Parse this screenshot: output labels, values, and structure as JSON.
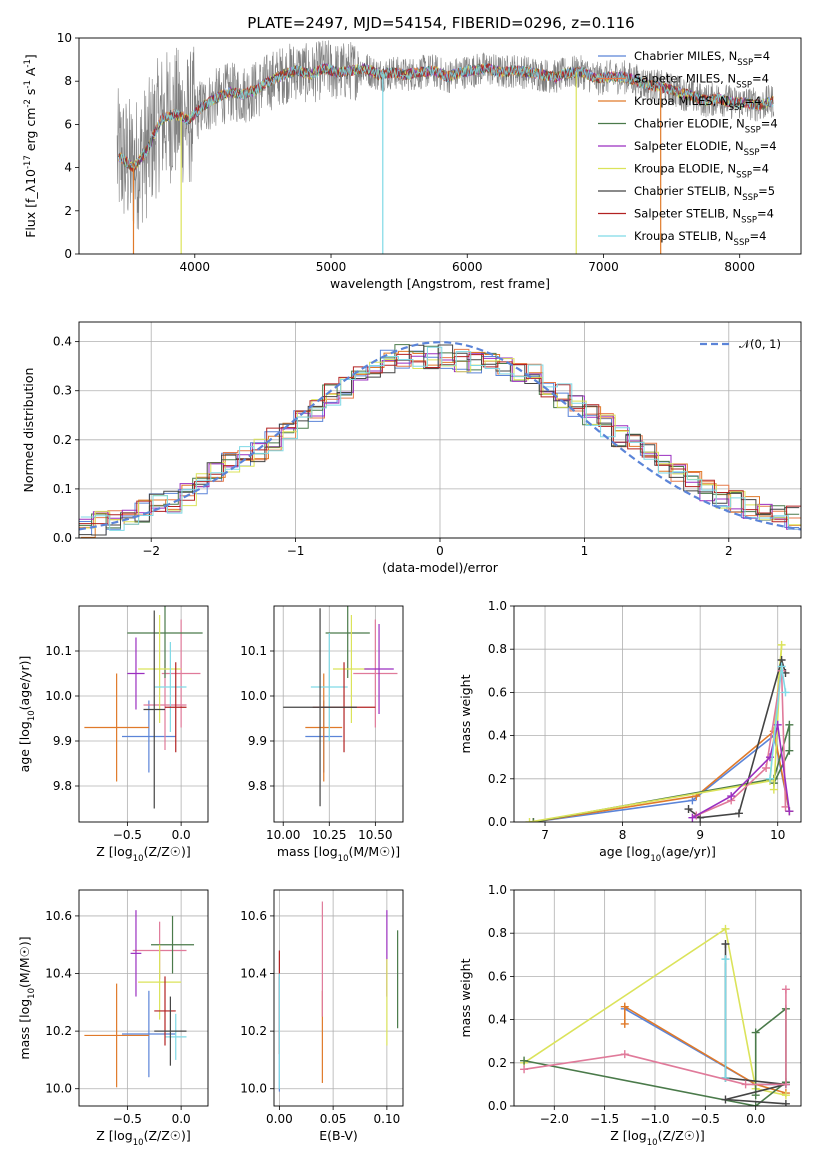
{
  "figure": {
    "title": "PLATE=2497, MJD=54154, FIBERID=0296, z=0.116"
  },
  "series_styles": [
    {
      "name": "Chabrier MILES, N_{SSP}=4",
      "color": "#5b84d8"
    },
    {
      "name": "Salpeter MILES, N_{SSP}=4",
      "color": "#e67a4a"
    },
    {
      "name": "Kroupa MILES, N_{SSP}=4",
      "color": "#e07a2a"
    },
    {
      "name": "Chabrier ELODIE, N_{SSP}=4",
      "color": "#4a7a4a"
    },
    {
      "name": "Salpeter ELODIE, N_{SSP}=4",
      "color": "#9b2fc0"
    },
    {
      "name": "Kroupa ELODIE, N_{SSP}=4",
      "color": "#dbe35a"
    },
    {
      "name": "Chabrier STELIB, N_{SSP}=5",
      "color": "#444444"
    },
    {
      "name": "Salpeter STELIB, N_{SSP}=4",
      "color": "#b22222"
    },
    {
      "name": "Kroupa STELIB, N_{SSP}=4",
      "color": "#7fd9e6"
    }
  ],
  "chart_data": [
    {
      "id": "spectrum",
      "type": "line",
      "xlabel": "wavelength [Angstrom, rest frame]",
      "ylabel": "Flux [f_λ10^{-17} erg cm^{-2} s^{-1} A^{-1}]",
      "xlim": [
        3150,
        8450
      ],
      "ylim": [
        0,
        10
      ],
      "xticks": [
        4000,
        5000,
        6000,
        7000,
        8000
      ],
      "yticks": [
        0,
        2,
        4,
        6,
        8,
        10
      ],
      "grid": false,
      "legend": "right",
      "data_color": "#808080",
      "continuum": {
        "x": [
          3450,
          3550,
          3650,
          3750,
          3850,
          3950,
          4050,
          4150,
          4250,
          4350,
          4450,
          4550,
          4650,
          4750,
          4850,
          4950,
          5050,
          5150,
          5250,
          5350,
          5450,
          5550,
          5650,
          5750,
          5850,
          5950,
          6050,
          6150,
          6250,
          6350,
          6450,
          6550,
          6650,
          6750,
          6850,
          6950,
          7050,
          7150,
          7250,
          7350,
          7450,
          7550,
          7650,
          7750,
          7850,
          7950,
          8050,
          8150,
          8250
        ],
        "y": [
          4.5,
          4.0,
          4.8,
          6.2,
          6.5,
          6.2,
          6.8,
          7.2,
          7.5,
          7.4,
          7.6,
          8.0,
          8.3,
          8.5,
          8.3,
          8.6,
          8.4,
          8.5,
          8.6,
          8.3,
          8.4,
          8.3,
          8.4,
          8.5,
          8.2,
          8.4,
          8.5,
          8.6,
          8.4,
          8.5,
          8.4,
          8.3,
          8.2,
          8.4,
          8.4,
          8.1,
          8.2,
          8.2,
          8.0,
          7.8,
          7.7,
          7.5,
          7.3,
          7.1,
          7.2,
          7.0,
          7.0,
          6.9,
          7.1
        ]
      }
    },
    {
      "id": "residuals",
      "type": "bar",
      "xlabel": "(data-model)/error",
      "ylabel": "Normed distribution",
      "xlim": [
        -2.5,
        2.5
      ],
      "ylim": [
        0,
        0.44
      ],
      "xticks": [
        -2,
        -1,
        0,
        1,
        2
      ],
      "yticks": [
        0.0,
        0.1,
        0.2,
        0.3,
        0.4
      ],
      "grid": true,
      "legend": "top-right",
      "reference_label": "𝒩(0, 1)",
      "reference_color": "#5b84d8",
      "bin_edges": [
        -2.5,
        -2.4,
        -2.3,
        -2.2,
        -2.1,
        -2.0,
        -1.9,
        -1.8,
        -1.7,
        -1.6,
        -1.5,
        -1.4,
        -1.3,
        -1.2,
        -1.1,
        -1.0,
        -0.9,
        -0.8,
        -0.7,
        -0.6,
        -0.5,
        -0.4,
        -0.3,
        -0.2,
        -0.1,
        0.0,
        0.1,
        0.2,
        0.3,
        0.4,
        0.5,
        0.6,
        0.7,
        0.8,
        0.9,
        1.0,
        1.1,
        1.2,
        1.3,
        1.4,
        1.5,
        1.6,
        1.7,
        1.8,
        1.9,
        2.0,
        2.1,
        2.2,
        2.3,
        2.4,
        2.5
      ],
      "base_values": [
        0.025,
        0.03,
        0.035,
        0.045,
        0.055,
        0.065,
        0.075,
        0.09,
        0.11,
        0.13,
        0.15,
        0.17,
        0.18,
        0.2,
        0.22,
        0.24,
        0.26,
        0.29,
        0.31,
        0.33,
        0.35,
        0.36,
        0.37,
        0.37,
        0.37,
        0.37,
        0.36,
        0.36,
        0.36,
        0.35,
        0.34,
        0.33,
        0.31,
        0.29,
        0.27,
        0.25,
        0.23,
        0.21,
        0.19,
        0.17,
        0.15,
        0.13,
        0.115,
        0.1,
        0.085,
        0.075,
        0.06,
        0.05,
        0.045,
        0.04
      ]
    },
    {
      "id": "age_vs_Z",
      "type": "scatter",
      "xlabel": "Z [log10(Z/Z☉)]",
      "ylabel": "age  [log10(age/yr)]",
      "xlim": [
        -0.95,
        0.25
      ],
      "ylim": [
        9.72,
        10.2
      ],
      "xticks": [
        -0.5,
        0.0
      ],
      "xticklabels": [
        "−0.5",
        "0.0"
      ],
      "yticks": [
        9.8,
        9.9,
        10.0,
        10.1
      ],
      "yticklabels": [
        "9.8",
        "9.9",
        "10.0",
        "10.1"
      ],
      "grid": true,
      "points": [
        {
          "x": -0.3,
          "y": 9.91,
          "xerr": 0.25,
          "yerr": 0.08,
          "color": "#5b84d8"
        },
        {
          "x": -0.6,
          "y": 9.93,
          "xerr": 0.3,
          "yerr": 0.12,
          "color": "#e07a2a"
        },
        {
          "x": -0.15,
          "y": 9.98,
          "xerr": 0.2,
          "yerr": 0.1,
          "color": "#e07a9a"
        },
        {
          "x": 0.0,
          "y": 10.05,
          "xerr": 0.18,
          "yerr": 0.12,
          "color": "#e07a9a"
        },
        {
          "x": -0.15,
          "y": 10.14,
          "xerr": 0.35,
          "yerr": 0.1,
          "color": "#4a7a4a"
        },
        {
          "x": -0.2,
          "y": 10.06,
          "xerr": 0.2,
          "yerr": 0.12,
          "color": "#dbe35a"
        },
        {
          "x": -0.1,
          "y": 10.02,
          "xerr": 0.15,
          "yerr": 0.1,
          "color": "#7fd9e6"
        },
        {
          "x": -0.05,
          "y": 9.975,
          "xerr": 0.1,
          "yerr": 0.1,
          "color": "#b22222"
        },
        {
          "x": -0.25,
          "y": 9.97,
          "xerr": 0.1,
          "yerr": 0.22,
          "color": "#444444"
        },
        {
          "x": -0.42,
          "y": 10.05,
          "xerr": 0.08,
          "yerr": 0.08,
          "color": "#9b2fc0"
        }
      ]
    },
    {
      "id": "age_vs_mass",
      "type": "scatter",
      "xlabel": "mass [log10(M/M☉)]",
      "ylabel": "",
      "xlim": [
        9.95,
        10.65
      ],
      "ylim": [
        9.72,
        10.2
      ],
      "xticks": [
        10.0,
        10.25,
        10.5
      ],
      "xticklabels": [
        "10.00",
        "10.25",
        "10.50"
      ],
      "yticks": [
        9.8,
        9.9,
        10.0,
        10.1
      ],
      "yticklabels": [
        "9.8",
        "9.9",
        "10.0",
        "10.1"
      ],
      "grid": true,
      "points": [
        {
          "x": 10.22,
          "y": 9.91,
          "xerr": 0.1,
          "yerr": 0.08,
          "color": "#5b84d8"
        },
        {
          "x": 10.22,
          "y": 9.93,
          "xerr": 0.1,
          "yerr": 0.12,
          "color": "#e07a2a"
        },
        {
          "x": 10.5,
          "y": 10.05,
          "xerr": 0.12,
          "yerr": 0.12,
          "color": "#e07a9a"
        },
        {
          "x": 10.35,
          "y": 10.14,
          "xerr": 0.12,
          "yerr": 0.1,
          "color": "#4a7a4a"
        },
        {
          "x": 10.37,
          "y": 10.06,
          "xerr": 0.1,
          "yerr": 0.12,
          "color": "#dbe35a"
        },
        {
          "x": 10.25,
          "y": 10.02,
          "xerr": 0.1,
          "yerr": 0.12,
          "color": "#7fd9e6"
        },
        {
          "x": 10.33,
          "y": 9.975,
          "xerr": 0.17,
          "yerr": 0.1,
          "color": "#b22222"
        },
        {
          "x": 10.2,
          "y": 9.975,
          "xerr": 0.2,
          "yerr": 0.22,
          "color": "#444444"
        },
        {
          "x": 10.52,
          "y": 10.06,
          "xerr": 0.08,
          "yerr": 0.1,
          "color": "#9b2fc0"
        }
      ]
    },
    {
      "id": "weight_vs_age",
      "type": "line",
      "xlabel": "age  [log10(age/yr)]",
      "ylabel": "mass weight",
      "xlim": [
        6.6,
        10.3
      ],
      "ylim": [
        0,
        1.0
      ],
      "xticks": [
        7,
        8,
        9,
        10
      ],
      "yticks": [
        0.0,
        0.2,
        0.4,
        0.6,
        0.8,
        1.0
      ],
      "grid": true,
      "lines": [
        {
          "color": "#5b84d8",
          "points": [
            [
              6.85,
              0.0
            ],
            [
              8.9,
              0.1
            ],
            [
              9.95,
              0.4
            ],
            [
              10.15,
              0.05
            ]
          ]
        },
        {
          "color": "#e07a2a",
          "points": [
            [
              6.85,
              0.0
            ],
            [
              8.95,
              0.12
            ],
            [
              9.95,
              0.42
            ],
            [
              10.15,
              0.05
            ]
          ]
        },
        {
          "color": "#4a7a4a",
          "points": [
            [
              6.85,
              0.0
            ],
            [
              9.95,
              0.2
            ],
            [
              10.15,
              0.45
            ],
            [
              10.15,
              0.33
            ],
            [
              9.95,
              0.18
            ]
          ]
        },
        {
          "color": "#dbe35a",
          "points": [
            [
              6.8,
              0.0
            ],
            [
              9.9,
              0.19
            ],
            [
              10.05,
              0.82
            ],
            [
              9.95,
              0.15
            ]
          ]
        },
        {
          "color": "#444444",
          "points": [
            [
              8.85,
              0.06
            ],
            [
              9.0,
              0.02
            ],
            [
              9.5,
              0.04
            ],
            [
              10.05,
              0.75
            ],
            [
              10.1,
              0.69
            ]
          ]
        },
        {
          "color": "#e07a9a",
          "points": [
            [
              8.95,
              0.03
            ],
            [
              9.4,
              0.1
            ],
            [
              9.85,
              0.25
            ],
            [
              10.05,
              0.7
            ],
            [
              10.1,
              0.07
            ]
          ]
        },
        {
          "color": "#9b2fc0",
          "points": [
            [
              8.9,
              0.02
            ],
            [
              9.4,
              0.12
            ],
            [
              9.9,
              0.3
            ],
            [
              10.0,
              0.45
            ],
            [
              10.15,
              0.05
            ]
          ]
        },
        {
          "color": "#7fd9e6",
          "points": [
            [
              9.9,
              0.2
            ],
            [
              10.05,
              0.72
            ],
            [
              10.1,
              0.6
            ]
          ]
        }
      ]
    },
    {
      "id": "mass_vs_Z",
      "type": "scatter",
      "xlabel": "Z [log10(Z/Z☉)]",
      "ylabel": "mass [log10(M/M☉)]",
      "xlim": [
        -0.95,
        0.25
      ],
      "ylim": [
        9.94,
        10.69
      ],
      "xticks": [
        -0.5,
        0.0
      ],
      "xticklabels": [
        "−0.5",
        "0.0"
      ],
      "yticks": [
        10.0,
        10.2,
        10.4,
        10.6
      ],
      "yticklabels": [
        "10.0",
        "10.2",
        "10.4",
        "10.6"
      ],
      "grid": true,
      "points": [
        {
          "x": -0.3,
          "y": 10.19,
          "xerr": 0.25,
          "yerr": 0.15,
          "color": "#5b84d8"
        },
        {
          "x": -0.6,
          "y": 10.185,
          "xerr": 0.3,
          "yerr": 0.18,
          "color": "#e07a2a"
        },
        {
          "x": -0.2,
          "y": 10.48,
          "xerr": 0.25,
          "yerr": 0.1,
          "color": "#e07a9a"
        },
        {
          "x": -0.08,
          "y": 10.5,
          "xerr": 0.2,
          "yerr": 0.1,
          "color": "#4a7a4a"
        },
        {
          "x": -0.2,
          "y": 10.37,
          "xerr": 0.2,
          "yerr": 0.13,
          "color": "#dbe35a"
        },
        {
          "x": -0.05,
          "y": 10.18,
          "xerr": 0.1,
          "yerr": 0.08,
          "color": "#7fd9e6"
        },
        {
          "x": -0.15,
          "y": 10.27,
          "xerr": 0.1,
          "yerr": 0.12,
          "color": "#b22222"
        },
        {
          "x": -0.1,
          "y": 10.2,
          "xerr": 0.15,
          "yerr": 0.12,
          "color": "#444444"
        },
        {
          "x": -0.42,
          "y": 10.47,
          "xerr": 0.05,
          "yerr": 0.15,
          "color": "#9b2fc0"
        }
      ]
    },
    {
      "id": "mass_vs_ebv",
      "type": "scatter",
      "xlabel": "E(B-V)",
      "ylabel": "",
      "xlim": [
        -0.005,
        0.115
      ],
      "ylim": [
        9.94,
        10.69
      ],
      "xticks": [
        0.0,
        0.05,
        0.1
      ],
      "xticklabels": [
        "0.00",
        "0.05",
        "0.10"
      ],
      "yticks": [
        10.0,
        10.2,
        10.4,
        10.6
      ],
      "yticklabels": [
        "10.0",
        "10.2",
        "10.4",
        "10.6"
      ],
      "grid": true,
      "points": [
        {
          "x": 0.0,
          "y": 10.19,
          "xerr": 0.0,
          "yerr": 0.2,
          "color": "#5b84d8"
        },
        {
          "x": 0.0,
          "y": 10.3,
          "xerr": 0.0,
          "yerr": 0.18,
          "color": "#b22222"
        },
        {
          "x": 0.0,
          "y": 10.2,
          "xerr": 0.0,
          "yerr": 0.2,
          "color": "#7fd9e6"
        },
        {
          "x": 0.04,
          "y": 10.18,
          "xerr": 0.0,
          "yerr": 0.16,
          "color": "#e07a2a"
        },
        {
          "x": 0.04,
          "y": 10.45,
          "xerr": 0.0,
          "yerr": 0.2,
          "color": "#e07a9a"
        },
        {
          "x": 0.1,
          "y": 10.47,
          "xerr": 0.0,
          "yerr": 0.15,
          "color": "#9b2fc0"
        },
        {
          "x": 0.1,
          "y": 10.3,
          "xerr": 0.0,
          "yerr": 0.15,
          "color": "#dbe35a"
        },
        {
          "x": 0.11,
          "y": 10.38,
          "xerr": 0.0,
          "yerr": 0.17,
          "color": "#4a7a4a"
        }
      ]
    },
    {
      "id": "weight_vs_Z",
      "type": "line",
      "xlabel": "Z [log10(Z/Z☉)]",
      "ylabel": "mass weight",
      "xlim": [
        -2.4,
        0.45
      ],
      "ylim": [
        0,
        1.0
      ],
      "xticks": [
        -2.0,
        -1.5,
        -1.0,
        -0.5,
        0.0
      ],
      "xticklabels": [
        "−2.0",
        "−1.5",
        "−1.0",
        "−0.5",
        "0.0"
      ],
      "yticks": [
        0.0,
        0.2,
        0.4,
        0.6,
        0.8,
        1.0
      ],
      "grid": true,
      "lines": [
        {
          "color": "#5b84d8",
          "points": [
            [
              -1.3,
              0.45
            ],
            [
              0.0,
              0.1
            ],
            [
              0.3,
              0.1
            ]
          ]
        },
        {
          "color": "#e07a2a",
          "points": [
            [
              -1.3,
              0.38
            ],
            [
              -1.3,
              0.46
            ],
            [
              0.0,
              0.1
            ],
            [
              0.3,
              0.06
            ]
          ]
        },
        {
          "color": "#dbe35a",
          "points": [
            [
              -2.3,
              0.2
            ],
            [
              -0.3,
              0.82
            ],
            [
              0.0,
              0.08
            ],
            [
              0.3,
              0.05
            ]
          ]
        },
        {
          "color": "#4a7a4a",
          "points": [
            [
              -2.3,
              0.21
            ],
            [
              0.0,
              0.0
            ],
            [
              0.3,
              0.11
            ],
            [
              0.3,
              0.45
            ],
            [
              0.0,
              0.34
            ],
            [
              0.0,
              0.05
            ]
          ]
        },
        {
          "color": "#444444",
          "points": [
            [
              -0.3,
              0.75
            ],
            [
              -0.3,
              0.13
            ],
            [
              0.3,
              0.1
            ],
            [
              -0.3,
              0.03
            ],
            [
              0.3,
              0.01
            ]
          ]
        },
        {
          "color": "#7fd9e6",
          "points": [
            [
              -0.3,
              0.68
            ],
            [
              -0.3,
              0.13
            ]
          ]
        },
        {
          "color": "#e07a9a",
          "points": [
            [
              -2.3,
              0.17
            ],
            [
              -1.3,
              0.24
            ],
            [
              -0.1,
              0.1
            ],
            [
              0.3,
              0.1
            ],
            [
              0.3,
              0.54
            ]
          ]
        }
      ]
    }
  ]
}
